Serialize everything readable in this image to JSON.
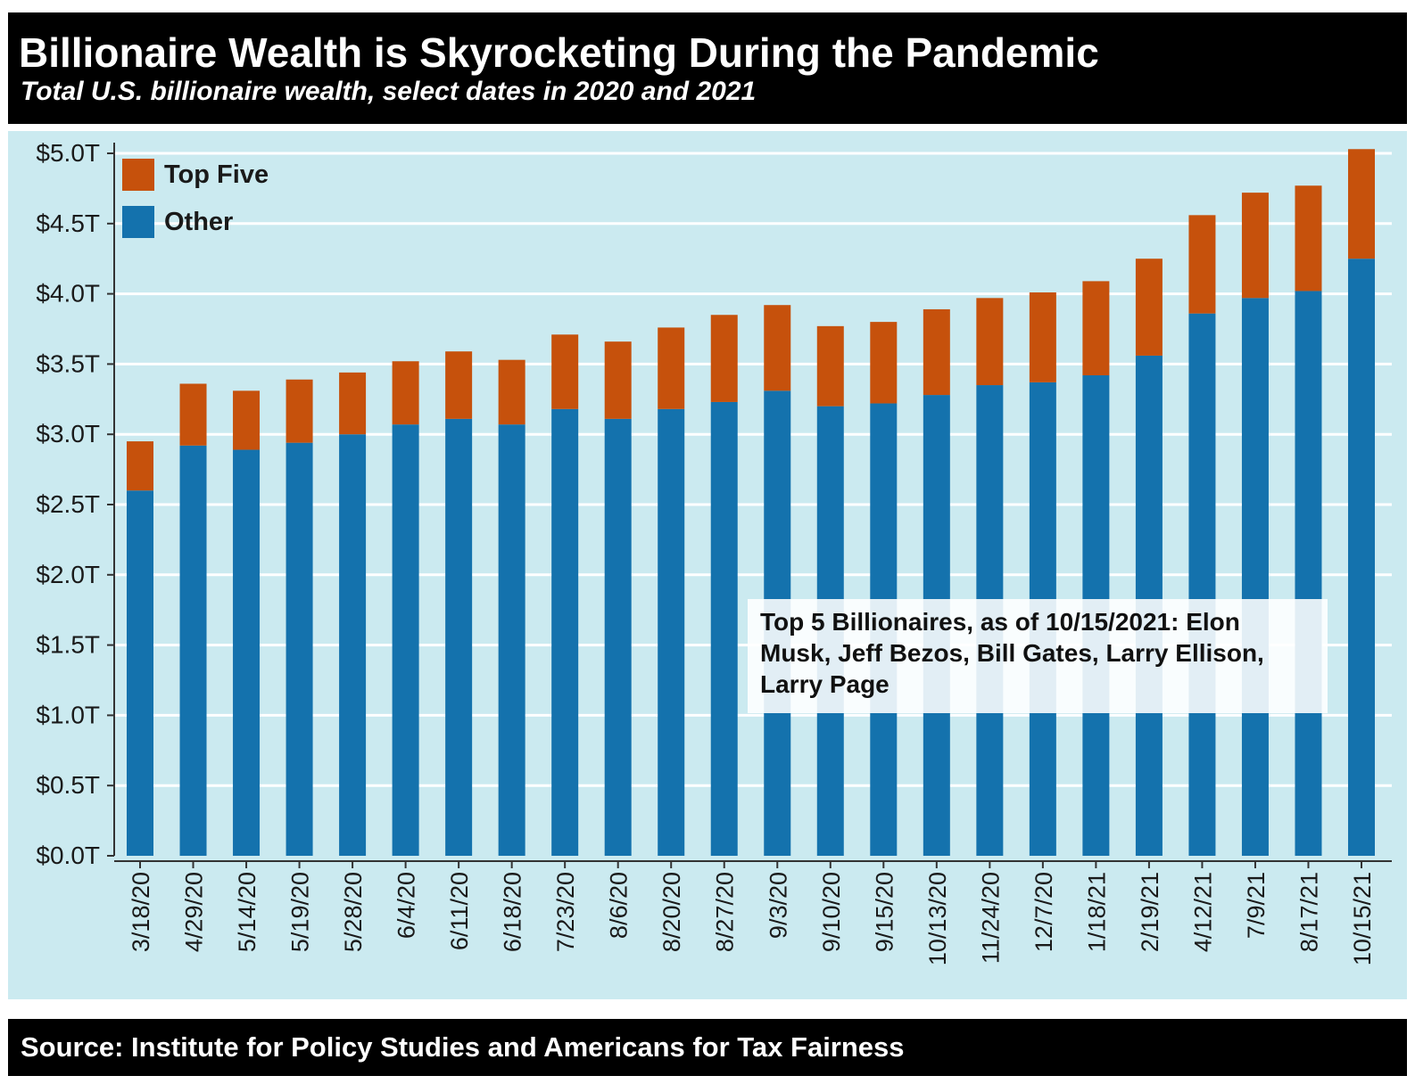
{
  "header": {
    "title": "Billionaire Wealth is Skyrocketing During the Pandemic",
    "subtitle": "Total U.S. billionaire wealth, select dates in 2020 and 2021"
  },
  "footer": {
    "source": "Source: Institute for Policy Studies and Americans for Tax Fairness"
  },
  "annotation": {
    "text": "Top 5 Billionaires, as of 10/15/2021: Elon Musk, Jeff Bezos, Bill Gates, Larry Ellison, Larry Page"
  },
  "colors": {
    "top_five": "#c6510c",
    "other": "#1472ad",
    "plot_background": "#cbeaf0",
    "gridline": "#ffffff"
  },
  "chart_data": {
    "type": "bar",
    "stacked": true,
    "categories": [
      "3/18/20",
      "4/29/20",
      "5/14/20",
      "5/19/20",
      "5/28/20",
      "6/4/20",
      "6/11/20",
      "6/18/20",
      "7/23/20",
      "8/6/20",
      "8/20/20",
      "8/27/20",
      "9/3/20",
      "9/10/20",
      "9/15/20",
      "10/13/20",
      "11/24/20",
      "12/7/20",
      "1/18/21",
      "2/19/21",
      "4/12/21",
      "7/9/21",
      "8/17/21",
      "10/15/21"
    ],
    "series": [
      {
        "name": "Other",
        "color": "#1472ad",
        "values": [
          2.6,
          2.92,
          2.89,
          2.94,
          3.0,
          3.07,
          3.11,
          3.07,
          3.18,
          3.11,
          3.18,
          3.23,
          3.31,
          3.2,
          3.22,
          3.28,
          3.35,
          3.37,
          3.42,
          3.56,
          3.86,
          3.97,
          4.02,
          4.25
        ]
      },
      {
        "name": "Top Five",
        "color": "#c6510c",
        "values": [
          0.35,
          0.44,
          0.42,
          0.45,
          0.44,
          0.45,
          0.48,
          0.46,
          0.53,
          0.55,
          0.58,
          0.62,
          0.61,
          0.57,
          0.58,
          0.61,
          0.62,
          0.64,
          0.67,
          0.69,
          0.7,
          0.75,
          0.75,
          0.78
        ]
      }
    ],
    "legend_order": [
      "Top Five",
      "Other"
    ],
    "yticks": [
      "$0.0T",
      "$0.5T",
      "$1.0T",
      "$1.5T",
      "$2.0T",
      "$2.5T",
      "$3.0T",
      "$3.5T",
      "$4.0T",
      "$4.5T",
      "$5.0T"
    ],
    "ylim": [
      0,
      5.0
    ],
    "title": "Billionaire Wealth is Skyrocketing During the Pandemic",
    "xlabel": "",
    "ylabel": "",
    "grid": true,
    "legend_position": "top-left"
  }
}
